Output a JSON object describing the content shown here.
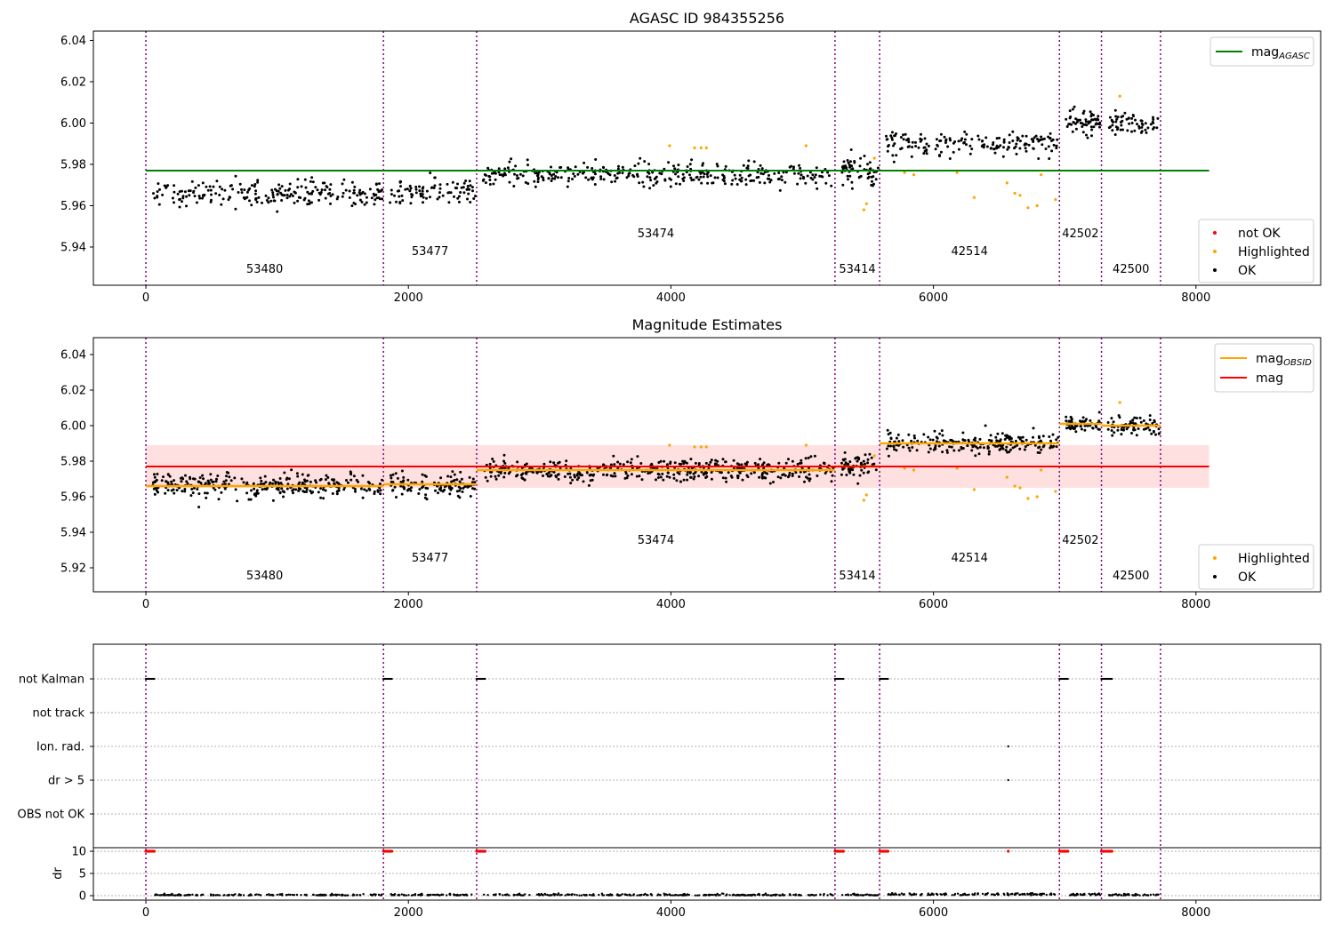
{
  "chart_data": [
    {
      "type": "scatter",
      "title": "AGASC ID 984355256",
      "xlim": [
        -400,
        8950
      ],
      "ylim": [
        5.9215,
        6.0445
      ],
      "xticks": [
        0,
        2000,
        4000,
        6000,
        8000
      ],
      "yticks": [
        5.94,
        5.96,
        5.98,
        6.0,
        6.02,
        6.04
      ],
      "obs_boundaries": [
        0,
        1810,
        2520,
        5250,
        5590,
        6960,
        7280,
        7730
      ],
      "observations": [
        {
          "obsid": "53480",
          "x_start": 0,
          "x_end": 1810,
          "mean": 5.966,
          "spread": 0.006
        },
        {
          "obsid": "53477",
          "x_start": 1810,
          "x_end": 2520,
          "mean": 5.967,
          "spread": 0.006
        },
        {
          "obsid": "53474",
          "x_start": 2520,
          "x_end": 5250,
          "mean": 5.975,
          "spread": 0.0055
        },
        {
          "obsid": "53414",
          "x_start": 5250,
          "x_end": 5590,
          "mean": 5.977,
          "spread": 0.0065
        },
        {
          "obsid": "42514",
          "x_start": 5590,
          "x_end": 6960,
          "mean": 5.99,
          "spread": 0.0055
        },
        {
          "obsid": "42502",
          "x_start": 6960,
          "x_end": 7280,
          "mean": 6.001,
          "spread": 0.005
        },
        {
          "obsid": "42500",
          "x_start": 7280,
          "x_end": 7730,
          "mean": 6.0,
          "spread": 0.0045
        }
      ],
      "highlighted_points": [
        [
          3990,
          5.989
        ],
        [
          4180,
          5.988
        ],
        [
          4230,
          5.988
        ],
        [
          4270,
          5.988
        ],
        [
          5030,
          5.989
        ],
        [
          5470,
          5.958
        ],
        [
          5490,
          5.961
        ],
        [
          5550,
          5.983
        ],
        [
          5780,
          5.976
        ],
        [
          5850,
          5.975
        ],
        [
          6180,
          5.976
        ],
        [
          6310,
          5.964
        ],
        [
          6560,
          5.971
        ],
        [
          6620,
          5.966
        ],
        [
          6660,
          5.965
        ],
        [
          6720,
          5.959
        ],
        [
          6790,
          5.96
        ],
        [
          6820,
          5.975
        ],
        [
          6930,
          5.963
        ],
        [
          7420,
          6.013
        ]
      ],
      "series": [
        {
          "name": "mag_AGASC",
          "type": "line",
          "x": [
            0,
            8100
          ],
          "y": [
            5.977,
            5.977
          ],
          "color": "#008000"
        }
      ],
      "legend_lines": [
        {
          "text": "mag",
          "sub": "AGASC",
          "color": "#008000"
        }
      ],
      "legend_markers": [
        {
          "text": "not OK",
          "color": "#ff0000"
        },
        {
          "text": "Highlighted",
          "color": "#ffa500"
        },
        {
          "text": "OK",
          "color": "#000000"
        }
      ]
    },
    {
      "type": "scatter",
      "title": "Magnitude Estimates",
      "xlim": [
        -400,
        8950
      ],
      "ylim": [
        5.9065,
        6.0495
      ],
      "xticks": [
        0,
        2000,
        4000,
        6000,
        8000
      ],
      "yticks": [
        5.92,
        5.94,
        5.96,
        5.98,
        6.0,
        6.02,
        6.04
      ],
      "mag": 5.977,
      "mag_band": [
        5.965,
        5.989
      ],
      "mag_obsid": [
        5.966,
        5.967,
        5.975,
        5.977,
        5.99,
        6.001,
        6.0
      ],
      "series": [
        {
          "name": "mag_OBSID",
          "type": "step",
          "color": "#ffa500"
        },
        {
          "name": "mag",
          "type": "line",
          "x": [
            0,
            8100
          ],
          "y": [
            5.977,
            5.977
          ],
          "color": "#ff0000"
        }
      ],
      "legend_lines": [
        {
          "text": "mag",
          "sub": "OBSID",
          "color": "#ffa500"
        },
        {
          "text": "mag",
          "sub": "",
          "color": "#ff0000"
        }
      ],
      "legend_markers": [
        {
          "text": "Highlighted",
          "color": "#ffa500"
        },
        {
          "text": "OK",
          "color": "#000000"
        }
      ]
    },
    {
      "type": "scatter",
      "title": "",
      "flag_labels": [
        "not Kalman",
        "not track",
        "Ion. rad.",
        "dr > 5",
        "OBS not OK"
      ],
      "not_kalman_segments": [
        [
          0,
          70
        ],
        [
          1810,
          1880
        ],
        [
          2520,
          2590
        ],
        [
          5250,
          5320
        ],
        [
          5590,
          5660
        ],
        [
          6960,
          7030
        ],
        [
          7280,
          7360
        ]
      ],
      "ion_rad_x": [
        6570
      ],
      "dr_gt_5_x": [
        6570
      ],
      "dr_ylabel": "dr",
      "dr_yticks": [
        0,
        5,
        10
      ],
      "dr_ylim": [
        -1,
        10.8
      ],
      "xticks": [
        0,
        2000,
        4000,
        6000,
        8000
      ],
      "xlim": [
        -400,
        8950
      ]
    }
  ]
}
